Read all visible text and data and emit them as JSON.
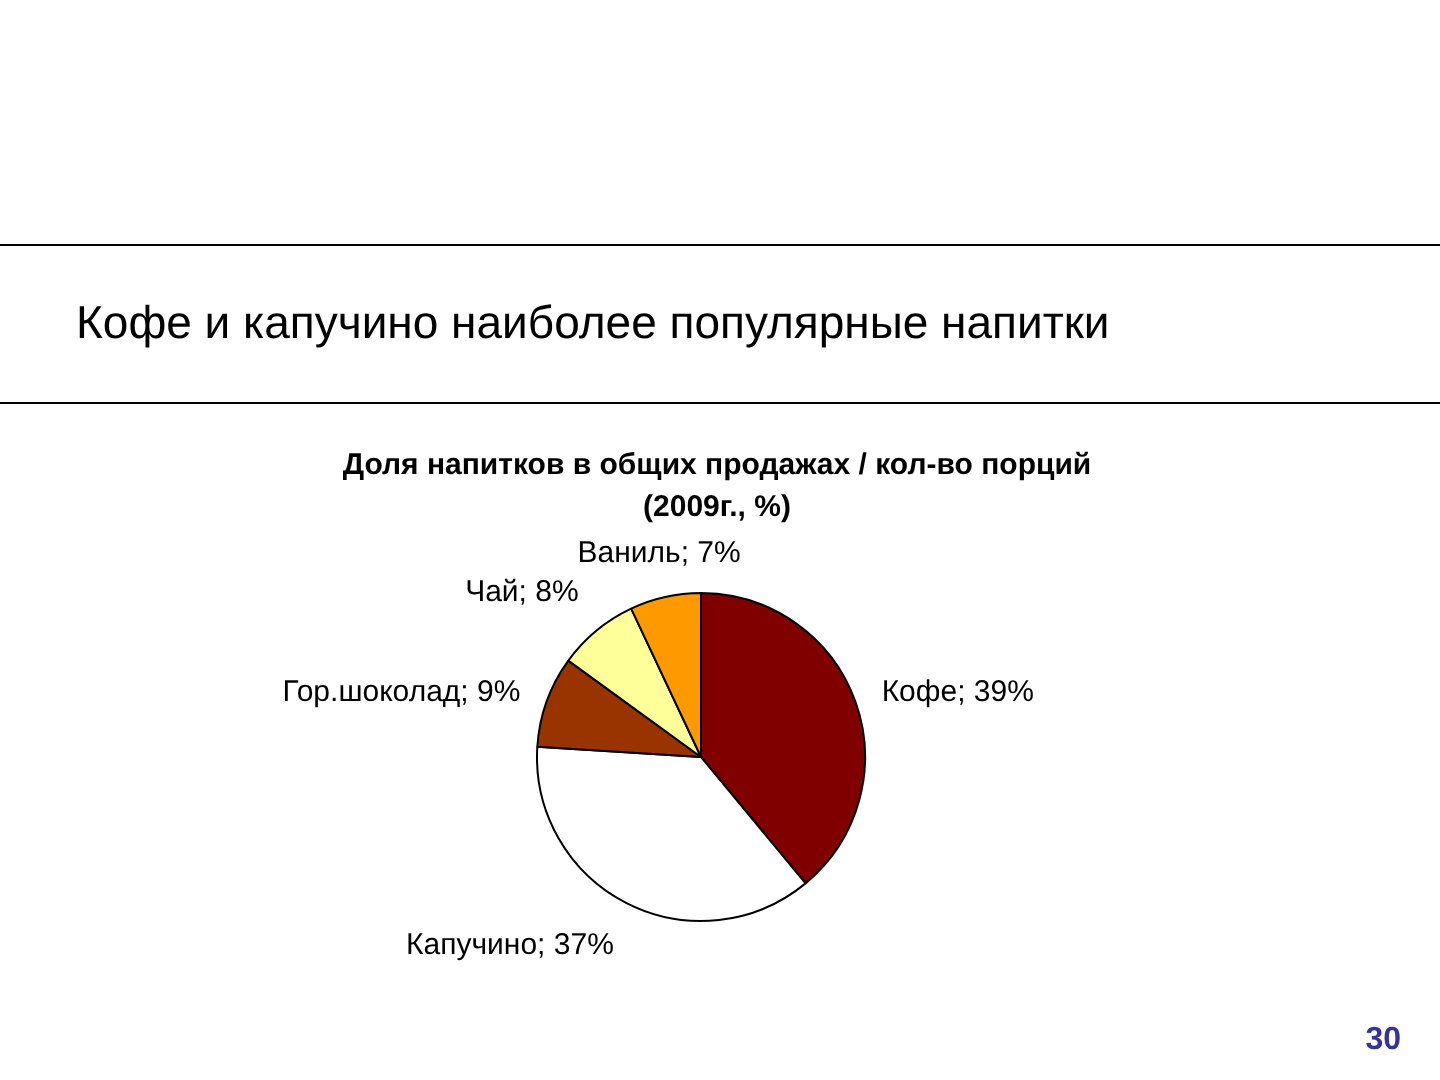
{
  "chart_data": {
    "type": "pie",
    "title": "Кофе и капучино наиболее популярные напитки",
    "subtitle": "Доля напитков в общих продажах / кол-во порций\n(2009г., %)",
    "categories": [
      "Кофе",
      "Капучино",
      "Гор.шоколад",
      "Чай",
      "Ваниль"
    ],
    "values": [
      39,
      37,
      9,
      8,
      7
    ],
    "colors": [
      "#800000",
      "#ffffff",
      "#993300",
      "#ffff99",
      "#ff9900"
    ],
    "value_labels": [
      "39%",
      "37%",
      "9%",
      "8%",
      "7%"
    ],
    "annotations": [
      "30"
    ]
  }
}
